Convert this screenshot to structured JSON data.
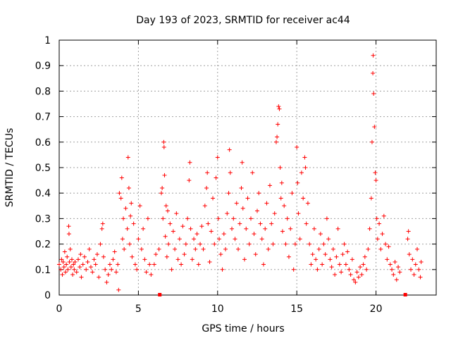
{
  "chart_data": {
    "type": "scatter",
    "title": "Day 193 of 2023, SRMTID for receiver ac44",
    "xlabel": "GPS time / hours",
    "ylabel": "SRMTID / TECUs",
    "xlim": [
      0,
      23.8
    ],
    "ylim": [
      0,
      1
    ],
    "xticks": [
      0,
      5,
      10,
      15,
      20
    ],
    "xtick_labels": [
      "0",
      "5",
      "10",
      "15",
      "20"
    ],
    "yticks": [
      0,
      0.1,
      0.2,
      0.3,
      0.4,
      0.5,
      0.6,
      0.7,
      0.8,
      0.9,
      1
    ],
    "ytick_labels": [
      "0",
      "0.1",
      "0.2",
      "0.3",
      "0.4",
      "0.5",
      "0.6",
      "0.7",
      "0.8",
      "0.9",
      "1"
    ],
    "grid": true,
    "marker": "+",
    "color": "#ff0000",
    "series": [
      {
        "name": "SRMTID",
        "points": [
          [
            0.0,
            0.12
          ],
          [
            0.1,
            0.1
          ],
          [
            0.15,
            0.14
          ],
          [
            0.2,
            0.08
          ],
          [
            0.25,
            0.13
          ],
          [
            0.3,
            0.11
          ],
          [
            0.35,
            0.17
          ],
          [
            0.4,
            0.09
          ],
          [
            0.45,
            0.12
          ],
          [
            0.5,
            0.15
          ],
          [
            0.55,
            0.1
          ],
          [
            0.6,
            0.27
          ],
          [
            0.62,
            0.24
          ],
          [
            0.65,
            0.13
          ],
          [
            0.7,
            0.18
          ],
          [
            0.75,
            0.11
          ],
          [
            0.8,
            0.14
          ],
          [
            0.85,
            0.08
          ],
          [
            0.9,
            0.12
          ],
          [
            0.95,
            0.1
          ],
          [
            1.0,
            0.13
          ],
          [
            1.1,
            0.09
          ],
          [
            1.2,
            0.14
          ],
          [
            1.3,
            0.11
          ],
          [
            1.35,
            0.16
          ],
          [
            1.4,
            0.07
          ],
          [
            1.5,
            0.12
          ],
          [
            1.6,
            0.15
          ],
          [
            1.7,
            0.1
          ],
          [
            1.8,
            0.13
          ],
          [
            1.9,
            0.18
          ],
          [
            2.0,
            0.11
          ],
          [
            2.1,
            0.09
          ],
          [
            2.2,
            0.14
          ],
          [
            2.3,
            0.12
          ],
          [
            2.4,
            0.16
          ],
          [
            2.5,
            0.07
          ],
          [
            2.6,
            0.2
          ],
          [
            2.7,
            0.26
          ],
          [
            2.75,
            0.28
          ],
          [
            2.8,
            0.15
          ],
          [
            2.9,
            0.1
          ],
          [
            3.0,
            0.05
          ],
          [
            3.1,
            0.08
          ],
          [
            3.2,
            0.12
          ],
          [
            3.3,
            0.1
          ],
          [
            3.4,
            0.14
          ],
          [
            3.5,
            0.17
          ],
          [
            3.6,
            0.09
          ],
          [
            3.7,
            0.12
          ],
          [
            3.75,
            0.02
          ],
          [
            3.8,
            0.4
          ],
          [
            3.9,
            0.38
          ],
          [
            3.95,
            0.46
          ],
          [
            4.0,
            0.22
          ],
          [
            4.05,
            0.3
          ],
          [
            4.1,
            0.18
          ],
          [
            4.2,
            0.34
          ],
          [
            4.3,
            0.26
          ],
          [
            4.35,
            0.54
          ],
          [
            4.4,
            0.42
          ],
          [
            4.45,
            0.2
          ],
          [
            4.5,
            0.31
          ],
          [
            4.55,
            0.36
          ],
          [
            4.6,
            0.15
          ],
          [
            4.7,
            0.28
          ],
          [
            4.8,
            0.12
          ],
          [
            4.9,
            0.1
          ],
          [
            5.0,
            0.22
          ],
          [
            5.1,
            0.35
          ],
          [
            5.2,
            0.18
          ],
          [
            5.3,
            0.26
          ],
          [
            5.4,
            0.14
          ],
          [
            5.5,
            0.09
          ],
          [
            5.6,
            0.3
          ],
          [
            5.7,
            0.12
          ],
          [
            5.8,
            0.08
          ],
          [
            6.0,
            0.12
          ],
          [
            6.1,
            0.16
          ],
          [
            6.3,
            0.18
          ],
          [
            6.45,
            0.4
          ],
          [
            6.5,
            0.42
          ],
          [
            6.55,
            0.3
          ],
          [
            6.6,
            0.6
          ],
          [
            6.62,
            0.58
          ],
          [
            6.65,
            0.47
          ],
          [
            6.7,
            0.23
          ],
          [
            6.75,
            0.35
          ],
          [
            6.8,
            0.15
          ],
          [
            6.85,
            0.33
          ],
          [
            6.9,
            0.2
          ],
          [
            7.0,
            0.28
          ],
          [
            7.1,
            0.1
          ],
          [
            7.2,
            0.25
          ],
          [
            7.3,
            0.18
          ],
          [
            7.4,
            0.32
          ],
          [
            7.5,
            0.14
          ],
          [
            7.6,
            0.22
          ],
          [
            7.7,
            0.12
          ],
          [
            7.8,
            0.27
          ],
          [
            7.9,
            0.16
          ],
          [
            8.0,
            0.2
          ],
          [
            8.1,
            0.3
          ],
          [
            8.2,
            0.45
          ],
          [
            8.25,
            0.52
          ],
          [
            8.3,
            0.26
          ],
          [
            8.4,
            0.14
          ],
          [
            8.5,
            0.22
          ],
          [
            8.6,
            0.18
          ],
          [
            8.7,
            0.24
          ],
          [
            8.8,
            0.12
          ],
          [
            8.9,
            0.2
          ],
          [
            9.0,
            0.27
          ],
          [
            9.1,
            0.18
          ],
          [
            9.2,
            0.35
          ],
          [
            9.3,
            0.42
          ],
          [
            9.35,
            0.48
          ],
          [
            9.4,
            0.28
          ],
          [
            9.5,
            0.13
          ],
          [
            9.6,
            0.25
          ],
          [
            9.7,
            0.38
          ],
          [
            9.8,
            0.2
          ],
          [
            9.9,
            0.46
          ],
          [
            10.0,
            0.54
          ],
          [
            10.05,
            0.3
          ],
          [
            10.1,
            0.22
          ],
          [
            10.2,
            0.16
          ],
          [
            10.3,
            0.1
          ],
          [
            10.4,
            0.24
          ],
          [
            10.5,
            0.18
          ],
          [
            10.6,
            0.32
          ],
          [
            10.7,
            0.4
          ],
          [
            10.75,
            0.57
          ],
          [
            10.8,
            0.48
          ],
          [
            10.9,
            0.26
          ],
          [
            11.0,
            0.3
          ],
          [
            11.1,
            0.22
          ],
          [
            11.2,
            0.36
          ],
          [
            11.3,
            0.18
          ],
          [
            11.4,
            0.28
          ],
          [
            11.5,
            0.42
          ],
          [
            11.55,
            0.52
          ],
          [
            11.6,
            0.34
          ],
          [
            11.7,
            0.14
          ],
          [
            11.8,
            0.26
          ],
          [
            11.9,
            0.38
          ],
          [
            12.0,
            0.2
          ],
          [
            12.1,
            0.3
          ],
          [
            12.2,
            0.48
          ],
          [
            12.3,
            0.24
          ],
          [
            12.4,
            0.16
          ],
          [
            12.5,
            0.33
          ],
          [
            12.6,
            0.4
          ],
          [
            12.7,
            0.28
          ],
          [
            12.8,
            0.22
          ],
          [
            12.9,
            0.12
          ],
          [
            13.0,
            0.26
          ],
          [
            13.1,
            0.36
          ],
          [
            13.2,
            0.18
          ],
          [
            13.3,
            0.43
          ],
          [
            13.4,
            0.28
          ],
          [
            13.5,
            0.2
          ],
          [
            13.6,
            0.32
          ],
          [
            13.7,
            0.6
          ],
          [
            13.75,
            0.62
          ],
          [
            13.8,
            0.67
          ],
          [
            13.85,
            0.74
          ],
          [
            13.9,
            0.73
          ],
          [
            13.95,
            0.5
          ],
          [
            14.0,
            0.38
          ],
          [
            14.05,
            0.44
          ],
          [
            14.1,
            0.25
          ],
          [
            14.2,
            0.35
          ],
          [
            14.3,
            0.2
          ],
          [
            14.4,
            0.3
          ],
          [
            14.5,
            0.15
          ],
          [
            14.6,
            0.26
          ],
          [
            14.7,
            0.4
          ],
          [
            14.8,
            0.1
          ],
          [
            14.9,
            0.2
          ],
          [
            15.0,
            0.58
          ],
          [
            15.05,
            0.44
          ],
          [
            15.1,
            0.32
          ],
          [
            15.2,
            0.22
          ],
          [
            15.3,
            0.48
          ],
          [
            15.4,
            0.38
          ],
          [
            15.5,
            0.54
          ],
          [
            15.55,
            0.5
          ],
          [
            15.6,
            0.28
          ],
          [
            15.7,
            0.36
          ],
          [
            15.8,
            0.2
          ],
          [
            15.9,
            0.12
          ],
          [
            16.0,
            0.16
          ],
          [
            16.1,
            0.26
          ],
          [
            16.2,
            0.14
          ],
          [
            16.3,
            0.1
          ],
          [
            16.4,
            0.18
          ],
          [
            16.5,
            0.24
          ],
          [
            16.6,
            0.12
          ],
          [
            16.7,
            0.2
          ],
          [
            16.8,
            0.16
          ],
          [
            16.9,
            0.3
          ],
          [
            17.0,
            0.22
          ],
          [
            17.1,
            0.14
          ],
          [
            17.2,
            0.11
          ],
          [
            17.3,
            0.18
          ],
          [
            17.4,
            0.08
          ],
          [
            17.5,
            0.15
          ],
          [
            17.6,
            0.26
          ],
          [
            17.7,
            0.12
          ],
          [
            17.8,
            0.09
          ],
          [
            17.9,
            0.16
          ],
          [
            18.0,
            0.2
          ],
          [
            18.1,
            0.12
          ],
          [
            18.2,
            0.17
          ],
          [
            18.3,
            0.1
          ],
          [
            18.4,
            0.08
          ],
          [
            18.5,
            0.14
          ],
          [
            18.6,
            0.06
          ],
          [
            18.7,
            0.05
          ],
          [
            18.8,
            0.09
          ],
          [
            18.9,
            0.07
          ],
          [
            19.0,
            0.11
          ],
          [
            19.1,
            0.08
          ],
          [
            19.2,
            0.12
          ],
          [
            19.3,
            0.15
          ],
          [
            19.4,
            0.1
          ],
          [
            19.5,
            0.18
          ],
          [
            19.6,
            0.26
          ],
          [
            19.7,
            0.38
          ],
          [
            19.75,
            0.6
          ],
          [
            19.8,
            0.87
          ],
          [
            19.82,
            0.94
          ],
          [
            19.85,
            0.79
          ],
          [
            19.9,
            0.66
          ],
          [
            19.95,
            0.48
          ],
          [
            20.0,
            0.45
          ],
          [
            20.05,
            0.3
          ],
          [
            20.1,
            0.22
          ],
          [
            20.2,
            0.28
          ],
          [
            20.3,
            0.18
          ],
          [
            20.4,
            0.24
          ],
          [
            20.5,
            0.31
          ],
          [
            20.6,
            0.2
          ],
          [
            20.7,
            0.14
          ],
          [
            20.8,
            0.19
          ],
          [
            20.9,
            0.12
          ],
          [
            21.0,
            0.1
          ],
          [
            21.1,
            0.08
          ],
          [
            21.2,
            0.13
          ],
          [
            21.3,
            0.06
          ],
          [
            21.4,
            0.11
          ],
          [
            21.5,
            0.09
          ],
          [
            22.0,
            0.22
          ],
          [
            22.05,
            0.25
          ],
          [
            22.1,
            0.16
          ],
          [
            22.2,
            0.1
          ],
          [
            22.3,
            0.14
          ],
          [
            22.4,
            0.08
          ],
          [
            22.5,
            0.12
          ],
          [
            22.6,
            0.18
          ],
          [
            22.7,
            0.1
          ],
          [
            22.8,
            0.07
          ],
          [
            22.85,
            0.13
          ]
        ]
      }
    ],
    "gap_markers_x": [
      6.35,
      21.85
    ]
  }
}
